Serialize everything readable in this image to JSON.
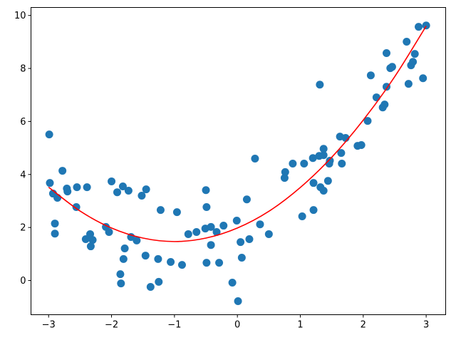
{
  "chart_data": {
    "type": "scatter",
    "title": "",
    "xlabel": "",
    "ylabel": "",
    "xlim": [
      -3.28,
      3.31
    ],
    "ylim": [
      -1.29,
      10.3
    ],
    "grid": false,
    "x_ticks": [
      "−3",
      "−2",
      "−1",
      "0",
      "1",
      "2",
      "3"
    ],
    "x_tick_values": [
      -3,
      -2,
      -1,
      0,
      1,
      2,
      3
    ],
    "y_ticks": [
      "0",
      "2",
      "4",
      "6",
      "8",
      "10"
    ],
    "y_tick_values": [
      0,
      2,
      4,
      6,
      8,
      10
    ],
    "colors": {
      "points": "#1f77b4",
      "line": "#ff0000"
    },
    "series": [
      {
        "type": "scatter",
        "points": [
          [
            -2.99,
            5.51
          ],
          [
            -2.98,
            3.68
          ],
          [
            -2.93,
            3.28
          ],
          [
            -2.9,
            2.15
          ],
          [
            -2.9,
            1.77
          ],
          [
            -2.86,
            3.12
          ],
          [
            -2.78,
            4.14
          ],
          [
            -2.71,
            3.47
          ],
          [
            -2.7,
            3.36
          ],
          [
            -2.55,
            3.52
          ],
          [
            -2.39,
            3.52
          ],
          [
            -2.56,
            2.77
          ],
          [
            -2.41,
            1.56
          ],
          [
            -2.34,
            1.75
          ],
          [
            -2.33,
            1.29
          ],
          [
            -2.3,
            1.53
          ],
          [
            -2.09,
            2.02
          ],
          [
            -2.04,
            1.83
          ],
          [
            -2.0,
            3.74
          ],
          [
            -1.91,
            3.33
          ],
          [
            -1.82,
            3.55
          ],
          [
            -1.86,
            0.24
          ],
          [
            -1.85,
            -0.11
          ],
          [
            -1.81,
            0.81
          ],
          [
            -1.79,
            1.21
          ],
          [
            -1.73,
            3.39
          ],
          [
            -1.69,
            1.64
          ],
          [
            -1.6,
            1.51
          ],
          [
            -1.52,
            3.2
          ],
          [
            -1.45,
            3.44
          ],
          [
            -1.46,
            0.94
          ],
          [
            -1.38,
            -0.24
          ],
          [
            -1.26,
            0.81
          ],
          [
            -1.25,
            -0.05
          ],
          [
            -1.22,
            2.66
          ],
          [
            -1.06,
            0.7
          ],
          [
            -0.96,
            2.58
          ],
          [
            -0.88,
            0.59
          ],
          [
            -0.78,
            1.75
          ],
          [
            -0.65,
            1.83
          ],
          [
            -0.51,
            1.96
          ],
          [
            -0.5,
            3.41
          ],
          [
            -0.49,
            2.77
          ],
          [
            -0.49,
            0.67
          ],
          [
            -0.42,
            1.34
          ],
          [
            -0.42,
            2.02
          ],
          [
            -0.33,
            1.83
          ],
          [
            -0.29,
            0.67
          ],
          [
            -0.22,
            2.07
          ],
          [
            -0.08,
            -0.08
          ],
          [
            -0.01,
            2.26
          ],
          [
            0.01,
            -0.78
          ],
          [
            0.05,
            1.45
          ],
          [
            0.07,
            0.86
          ],
          [
            0.15,
            3.06
          ],
          [
            0.19,
            1.56
          ],
          [
            0.28,
            4.6
          ],
          [
            0.36,
            2.12
          ],
          [
            0.5,
            1.75
          ],
          [
            0.75,
            3.87
          ],
          [
            0.76,
            4.09
          ],
          [
            0.88,
            4.41
          ],
          [
            1.06,
            4.41
          ],
          [
            1.03,
            2.42
          ],
          [
            1.21,
            2.66
          ],
          [
            1.2,
            4.62
          ],
          [
            1.3,
            4.7
          ],
          [
            1.37,
            4.73
          ],
          [
            1.37,
            4.97
          ],
          [
            1.31,
            7.39
          ],
          [
            1.21,
            3.68
          ],
          [
            1.32,
            3.52
          ],
          [
            1.37,
            3.39
          ],
          [
            1.44,
            3.76
          ],
          [
            1.46,
            4.41
          ],
          [
            1.47,
            4.52
          ],
          [
            1.63,
            5.43
          ],
          [
            1.72,
            5.38
          ],
          [
            1.65,
            4.81
          ],
          [
            1.66,
            4.41
          ],
          [
            1.91,
            5.08
          ],
          [
            1.97,
            5.11
          ],
          [
            2.07,
            6.02
          ],
          [
            2.12,
            7.74
          ],
          [
            2.21,
            6.91
          ],
          [
            2.31,
            6.53
          ],
          [
            2.34,
            6.64
          ],
          [
            2.37,
            7.31
          ],
          [
            2.37,
            8.58
          ],
          [
            2.43,
            8.01
          ],
          [
            2.46,
            8.06
          ],
          [
            2.72,
            7.42
          ],
          [
            2.69,
            9.01
          ],
          [
            2.76,
            8.12
          ],
          [
            2.79,
            8.25
          ],
          [
            2.82,
            8.55
          ],
          [
            2.95,
            7.63
          ],
          [
            2.88,
            9.57
          ],
          [
            3.0,
            9.62
          ]
        ]
      },
      {
        "type": "line",
        "x": [
          -3,
          -2.5,
          -2,
          -1.5,
          -1,
          -0.5,
          0,
          0.5,
          1,
          1.5,
          2,
          2.5,
          3
        ],
        "y": [
          3.52,
          2.62,
          1.98,
          1.6,
          1.47,
          1.6,
          1.98,
          2.61,
          3.51,
          4.65,
          6.05,
          7.69,
          9.6
        ]
      }
    ]
  }
}
